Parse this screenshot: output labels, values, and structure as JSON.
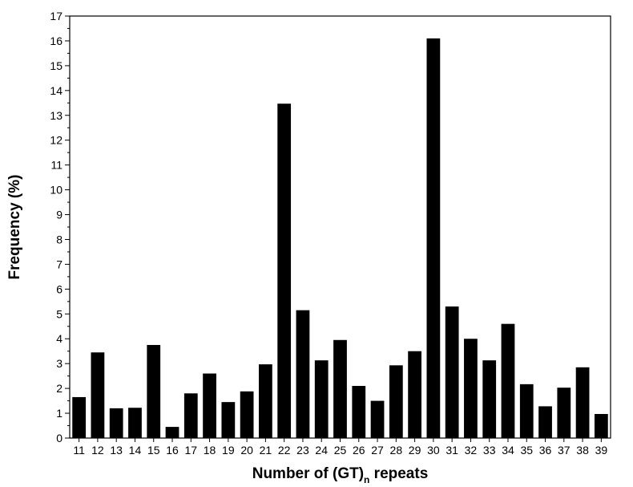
{
  "chart_data": {
    "type": "bar",
    "title": "",
    "xlabel": {
      "prefix": "Number of (GT)",
      "subscript": "n",
      "suffix": " repeats"
    },
    "ylabel": "Frequency (%)",
    "ylim": [
      0,
      17
    ],
    "y_major_step": 1,
    "y_minor_step": 0.5,
    "grid": false,
    "legend": "none",
    "bar_color": "#000000",
    "categories": [
      "11",
      "12",
      "13",
      "14",
      "15",
      "16",
      "17",
      "18",
      "19",
      "20",
      "21",
      "22",
      "23",
      "24",
      "25",
      "26",
      "27",
      "28",
      "29",
      "30",
      "31",
      "32",
      "33",
      "34",
      "35",
      "36",
      "37",
      "38",
      "39"
    ],
    "series": [
      {
        "values": [
          1.65,
          3.45,
          1.2,
          1.22,
          3.75,
          0.45,
          1.8,
          2.6,
          1.45,
          1.88,
          2.97,
          13.47,
          5.15,
          3.13,
          3.95,
          2.1,
          1.5,
          2.93,
          3.5,
          16.1,
          5.3,
          4.0,
          3.13,
          4.6,
          2.17,
          1.28,
          2.03,
          2.85,
          0.97
        ]
      }
    ]
  }
}
